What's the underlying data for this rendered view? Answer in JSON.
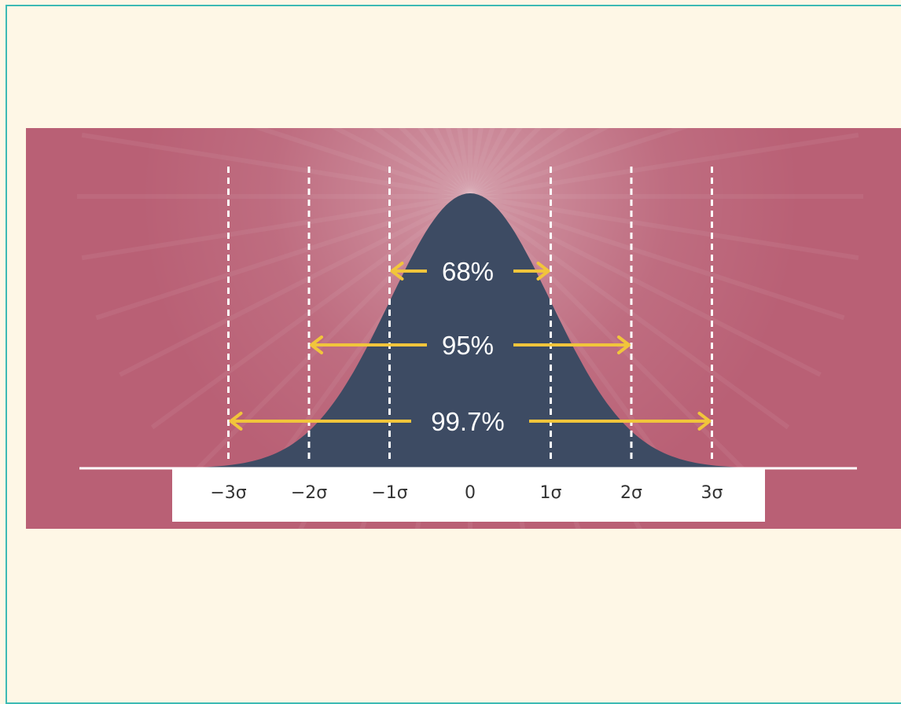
{
  "colors": {
    "page_background": "#fef7e6",
    "border": "#3cbab4",
    "panel_background": "#b96075",
    "curve_fill": "#3d4b63",
    "arrow": "#f1c53b",
    "guide_lines": "#ffffff",
    "baseline": "#ffffff",
    "label_box": "#ffffff"
  },
  "distribution": {
    "type": "normal",
    "mean": 0,
    "sd": 1
  },
  "ticks": [
    {
      "value": -3,
      "label": "−3σ"
    },
    {
      "value": -2,
      "label": "−2σ"
    },
    {
      "value": -1,
      "label": "−1σ"
    },
    {
      "value": 0,
      "label": "0"
    },
    {
      "value": 1,
      "label": "1σ"
    },
    {
      "value": 2,
      "label": "2σ"
    },
    {
      "value": 3,
      "label": "3σ"
    }
  ],
  "guides": [
    -3,
    -2,
    -1,
    1,
    2,
    3
  ],
  "ranges": [
    {
      "from": -1,
      "to": 1,
      "label": "68%"
    },
    {
      "from": -2,
      "to": 2,
      "label": "95%"
    },
    {
      "from": -3,
      "to": 3,
      "label": "99.7%"
    }
  ]
}
